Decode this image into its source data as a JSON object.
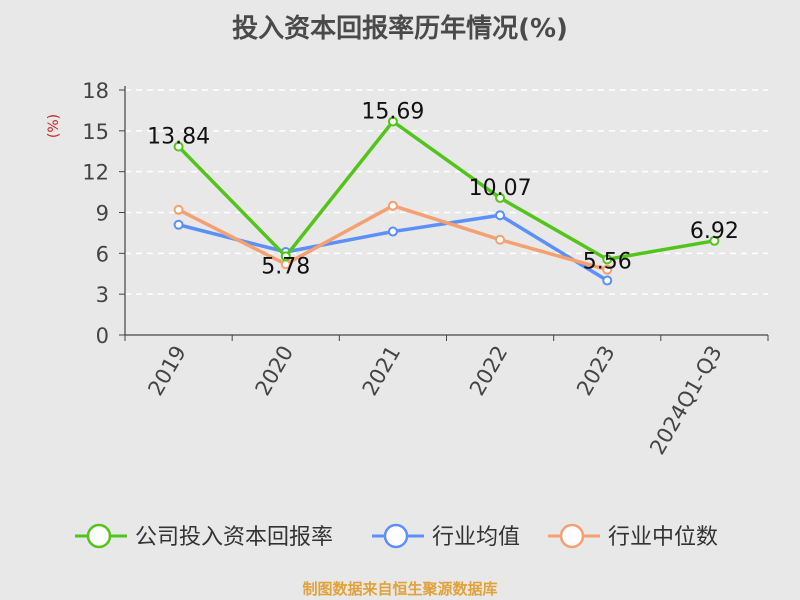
{
  "chart_data": {
    "type": "line",
    "title": "投入资本回报率历年情况(%)",
    "ylabel": "(%)",
    "categories": [
      "2019",
      "2020",
      "2021",
      "2022",
      "2023",
      "2024Q1-Q3"
    ],
    "ylim": [
      0,
      18
    ],
    "yticks": [
      0,
      3,
      6,
      9,
      12,
      15,
      18
    ],
    "grid": true,
    "legend_position": "bottom",
    "series": [
      {
        "name": "公司投入资本回报率",
        "color": "#52c41a",
        "values": [
          13.84,
          5.78,
          15.69,
          10.07,
          5.56,
          6.92
        ],
        "labels": [
          "13.84",
          "5.78",
          "15.69",
          "10.07",
          "5.56",
          "6.92"
        ]
      },
      {
        "name": "行业均值",
        "color": "#5b8ff9",
        "values": [
          8.1,
          6.1,
          7.6,
          8.8,
          4.0,
          null
        ]
      },
      {
        "name": "行业中位数",
        "color": "#f4a070",
        "values": [
          9.2,
          5.2,
          9.5,
          7.0,
          4.8,
          null
        ]
      }
    ]
  },
  "footer": "制图数据来自恒生聚源数据库"
}
